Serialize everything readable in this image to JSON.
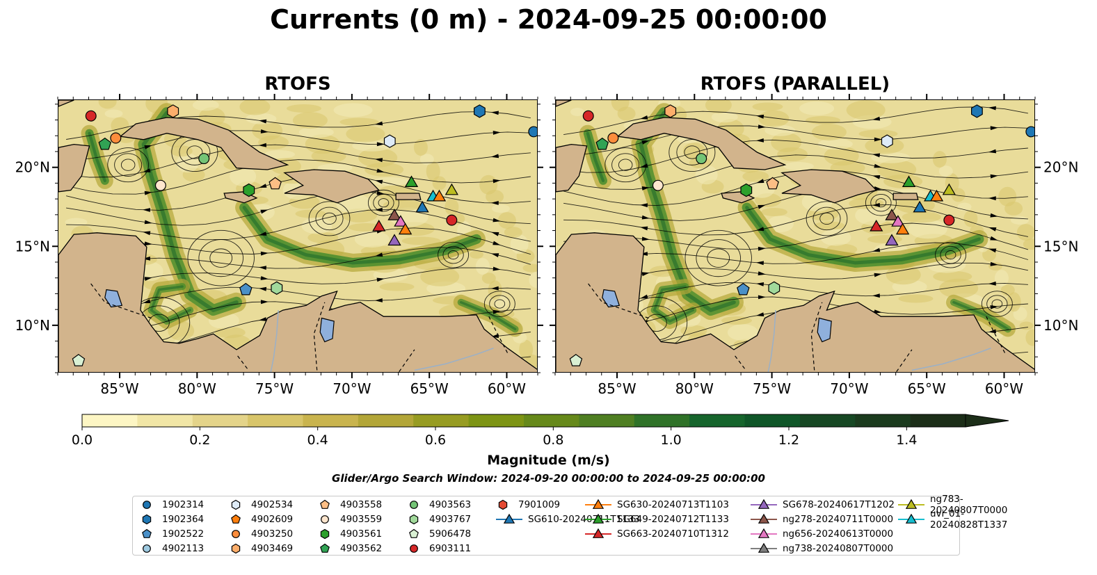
{
  "title": "Currents (0 m) - 2024-09-25 00:00:00",
  "panels": [
    {
      "title": "RTOFS"
    },
    {
      "title": "RTOFS (PARALLEL)"
    }
  ],
  "map_extent": {
    "lon_min": -89,
    "lon_max": -58,
    "lat_min": 7,
    "lat_max": 24.3
  },
  "x_ticks": [
    {
      "lon": -85,
      "label": "85°W"
    },
    {
      "lon": -80,
      "label": "80°W"
    },
    {
      "lon": -75,
      "label": "75°W"
    },
    {
      "lon": -70,
      "label": "70°W"
    },
    {
      "lon": -65,
      "label": "65°W"
    },
    {
      "lon": -60,
      "label": "60°W"
    }
  ],
  "y_ticks": [
    {
      "lat": 20,
      "label": "20°N"
    },
    {
      "lat": 15,
      "label": "15°N"
    },
    {
      "lat": 10,
      "label": "10°N"
    }
  ],
  "colors": {
    "land": "#d2b48c",
    "water_low": "#e9dc9a",
    "lake": "#8fb0dc"
  },
  "colorbar": {
    "title": "Magnitude (m/s)",
    "min": 0.0,
    "max": 1.5,
    "extend": "max",
    "tick_labels": [
      {
        "value": 0.0,
        "label": "0.0"
      },
      {
        "value": 0.2,
        "label": "0.2"
      },
      {
        "value": 0.4,
        "label": "0.4"
      },
      {
        "value": 0.6,
        "label": "0.6"
      },
      {
        "value": 0.8,
        "label": "0.8"
      },
      {
        "value": 1.0,
        "label": "1.0"
      },
      {
        "value": 1.2,
        "label": "1.2"
      },
      {
        "value": 1.4,
        "label": "1.4"
      }
    ],
    "colors": [
      "#fdf6c4",
      "#f1e6a6",
      "#e4d48a",
      "#d8c56a",
      "#c9b44e",
      "#b3a638",
      "#979c22",
      "#7d9414",
      "#66891a",
      "#4f7f22",
      "#2f7228",
      "#16652c",
      "#0f5628",
      "#174824",
      "#1b3b1e",
      "#1c2e18"
    ]
  },
  "search_window": "Glider/Argo Search Window: 2024-09-20 00:00:00 to 2024-09-25 00:00:00",
  "legend": [
    {
      "label": "1902314",
      "marker": "circle",
      "color": "#1f77b4"
    },
    {
      "label": "1902364",
      "marker": "hexagon",
      "color": "#1f77b4"
    },
    {
      "label": "1902522",
      "marker": "pentagon",
      "color": "#4a90c8"
    },
    {
      "label": "4902113",
      "marker": "circle",
      "color": "#9ecae1"
    },
    {
      "label": "4902534",
      "marker": "hexagon",
      "color": "#deebf7"
    },
    {
      "label": "4902609",
      "marker": "pentagon",
      "color": "#ff7f0e"
    },
    {
      "label": "4903250",
      "marker": "circle",
      "color": "#fd8d3c"
    },
    {
      "label": "4903469",
      "marker": "hexagon",
      "color": "#fdae6b"
    },
    {
      "label": "4903558",
      "marker": "pentagon",
      "color": "#fdbe85"
    },
    {
      "label": "4903559",
      "marker": "circle",
      "color": "#fee6ce"
    },
    {
      "label": "4903561",
      "marker": "hexagon",
      "color": "#2ca02c"
    },
    {
      "label": "4903562",
      "marker": "pentagon",
      "color": "#31a354"
    },
    {
      "label": "4903563",
      "marker": "circle",
      "color": "#74c476"
    },
    {
      "label": "4903767",
      "marker": "hexagon",
      "color": "#a1d99b"
    },
    {
      "label": "5906478",
      "marker": "pentagon",
      "color": "#d9f0d3"
    },
    {
      "label": "6903111",
      "marker": "circle",
      "color": "#d62728"
    },
    {
      "label": "7901009",
      "marker": "hexagon",
      "color": "#e34a33"
    },
    {
      "label": "SG610-20240711T1133",
      "marker": "triangle",
      "color": "#1f77b4"
    },
    {
      "label": "SG630-20240713T1103",
      "marker": "triangle",
      "color": "#ff7f0e"
    },
    {
      "label": "SG649-20240712T1133",
      "marker": "triangle",
      "color": "#2ca02c"
    },
    {
      "label": "SG663-20240710T1312",
      "marker": "triangle",
      "color": "#d62728"
    },
    {
      "label": "SG678-20240617T1202",
      "marker": "triangle",
      "color": "#9467bd"
    },
    {
      "label": "ng278-20240711T0000",
      "marker": "triangle",
      "color": "#8c564b"
    },
    {
      "label": "ng656-20240613T0000",
      "marker": "triangle",
      "color": "#e377c2"
    },
    {
      "label": "ng738-20240807T0000",
      "marker": "triangle",
      "color": "#7f7f7f"
    },
    {
      "label": "ng783-20240807T0000",
      "marker": "triangle",
      "color": "#bcbd22"
    },
    {
      "label": "uvi_01-20240828T1337",
      "marker": "triangle",
      "color": "#17becf"
    }
  ],
  "platforms": [
    {
      "lon": -86.9,
      "lat": 23.3,
      "color": "#d62728",
      "marker": "circle"
    },
    {
      "lon": -81.6,
      "lat": 23.6,
      "color": "#fdae6b",
      "marker": "hexagon"
    },
    {
      "lon": -85.3,
      "lat": 21.9,
      "color": "#fd8d3c",
      "marker": "circle"
    },
    {
      "lon": -86.0,
      "lat": 21.5,
      "color": "#31a354",
      "marker": "pentagon"
    },
    {
      "lon": -61.8,
      "lat": 23.6,
      "color": "#1f77b4",
      "marker": "hexagon"
    },
    {
      "lon": -58.3,
      "lat": 22.3,
      "color": "#1f77b4",
      "marker": "circle"
    },
    {
      "lon": -67.6,
      "lat": 21.7,
      "color": "#deebf7",
      "marker": "hexagon"
    },
    {
      "lon": -79.6,
      "lat": 20.6,
      "color": "#74c476",
      "marker": "circle"
    },
    {
      "lon": -82.4,
      "lat": 18.9,
      "color": "#fee6ce",
      "marker": "circle"
    },
    {
      "lon": -76.7,
      "lat": 18.6,
      "color": "#2ca02c",
      "marker": "hexagon"
    },
    {
      "lon": -75.0,
      "lat": 19.0,
      "color": "#fdbe85",
      "marker": "pentagon"
    },
    {
      "lon": -63.6,
      "lat": 16.7,
      "color": "#d62728",
      "marker": "circle"
    },
    {
      "lon": -76.9,
      "lat": 12.3,
      "color": "#4a90c8",
      "marker": "pentagon"
    },
    {
      "lon": -74.9,
      "lat": 12.4,
      "color": "#a1d99b",
      "marker": "hexagon"
    },
    {
      "lon": -87.7,
      "lat": 7.8,
      "color": "#d9f0d3",
      "marker": "pentagon"
    },
    {
      "lon": -66.2,
      "lat": 19.1,
      "color": "#2ca02c",
      "marker": "triangle"
    },
    {
      "lon": -65.5,
      "lat": 17.5,
      "color": "#1f77b4",
      "marker": "triangle"
    },
    {
      "lon": -64.8,
      "lat": 18.2,
      "color": "#17becf",
      "marker": "triangle"
    },
    {
      "lon": -64.4,
      "lat": 18.2,
      "color": "#ff7f0e",
      "marker": "triangle"
    },
    {
      "lon": -63.6,
      "lat": 18.6,
      "color": "#bcbd22",
      "marker": "triangle"
    },
    {
      "lon": -67.3,
      "lat": 17.0,
      "color": "#8c564b",
      "marker": "triangle"
    },
    {
      "lon": -66.9,
      "lat": 16.6,
      "color": "#e377c2",
      "marker": "triangle"
    },
    {
      "lon": -66.6,
      "lat": 16.1,
      "color": "#ff7f0e",
      "marker": "triangle"
    },
    {
      "lon": -68.3,
      "lat": 16.3,
      "color": "#d62728",
      "marker": "triangle"
    },
    {
      "lon": -67.3,
      "lat": 15.4,
      "color": "#9467bd",
      "marker": "triangle"
    }
  ]
}
